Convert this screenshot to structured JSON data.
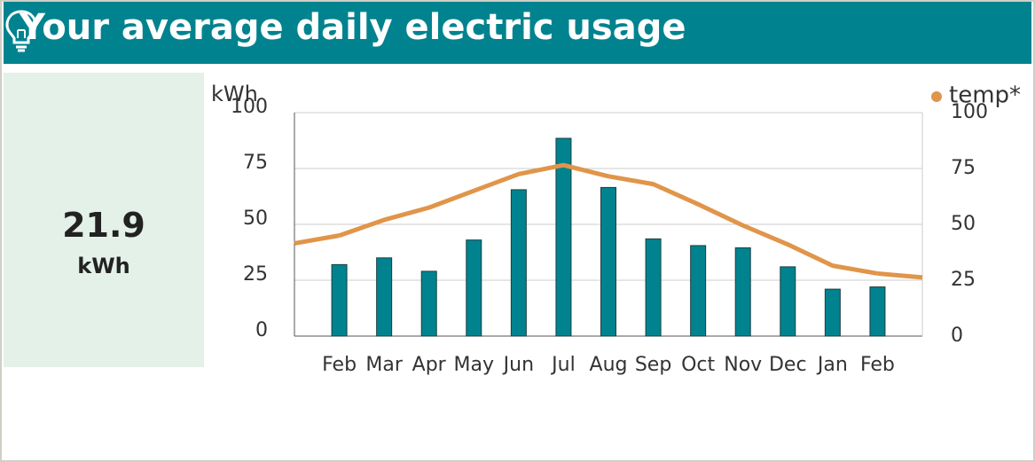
{
  "header": {
    "title": "Your average daily electric usage"
  },
  "summary": {
    "value": "21.9",
    "unit": "kWh"
  },
  "chart_data": {
    "type": "bar",
    "y_label": "kWh",
    "categories": [
      "Feb",
      "Mar",
      "Apr",
      "May",
      "Jun",
      "Jul",
      "Aug",
      "Sep",
      "Oct",
      "Nov",
      "Dec",
      "Jan",
      "Feb"
    ],
    "series": [
      {
        "color": "#00838f",
        "values": [
          32,
          35,
          29,
          43,
          65.5,
          88.5,
          66.5,
          43.5,
          40.5,
          39.5,
          31,
          21,
          22
        ]
      },
      {
        "name": "temp*",
        "type": "line",
        "axis": "y2",
        "color": "#e0954a",
        "values": [
          45,
          52,
          57.5,
          65,
          72.5,
          76.5,
          71.5,
          68,
          59,
          49.5,
          41,
          31.5,
          28
        ]
      }
    ],
    "ylim": [
      0,
      100
    ],
    "yticks": [
      0,
      25,
      50,
      75,
      100
    ],
    "y2lim": [
      0,
      100
    ],
    "y2ticks": [
      0,
      25,
      50,
      75,
      100
    ],
    "grid": true,
    "legend": "top-right"
  }
}
